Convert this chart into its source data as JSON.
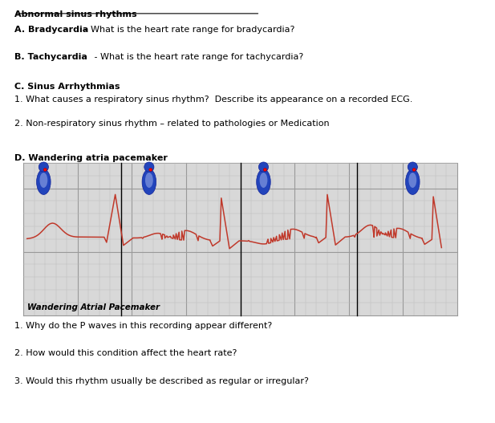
{
  "title": "Abnormal sinus rhythms",
  "section_a_bold": "A. Bradycardia",
  "section_a_text": " - What is the heart rate range for bradycardia?",
  "section_b_bold": "B. Tachycardia",
  "section_b_text": " - What is the heart rate range for tachycardia?",
  "section_c_bold": "C. Sinus Arrhythmias",
  "section_c1": "1. What causes a respiratory sinus rhythm?  Describe its appearance on a recorded ECG.",
  "section_c2": "2. Non-respiratory sinus rhythm – related to pathologies or Medication",
  "section_d_bold": "D. Wandering atria pacemaker",
  "ecg_label": "Wandering Atrial Pacemaker",
  "section_d1": "1. Why do the P waves in this recording appear different?",
  "section_d2": "2. How would this condition affect the heart rate?",
  "section_d3": "3. Would this rhythm usually be described as regular or irregular?",
  "background_color": "#ffffff",
  "text_color": "#000000",
  "ecg_line_color": "#c0392b"
}
